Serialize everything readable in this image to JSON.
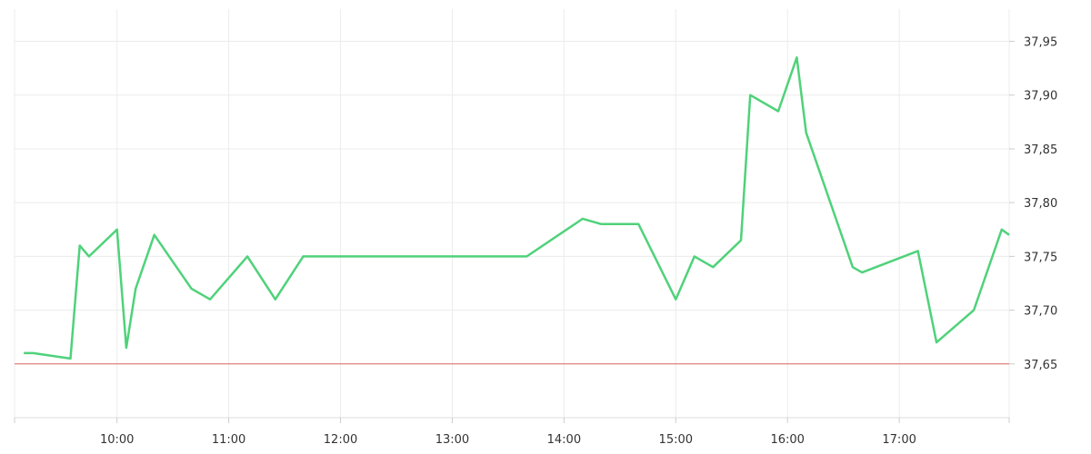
{
  "chart_data": {
    "type": "line",
    "title": "",
    "xlabel": "",
    "ylabel": "",
    "grid": true,
    "legend": "none",
    "colors": {
      "line": "#4fd27a",
      "reference": "#e06666",
      "grid": "#ececec"
    },
    "xlim": [
      "09:05",
      "17:59"
    ],
    "ylim": [
      37.6,
      37.98
    ],
    "x_ticks": [
      "10:00",
      "11:00",
      "12:00",
      "13:00",
      "14:00",
      "15:00",
      "16:00",
      "17:00"
    ],
    "y_ticks": [
      "37,65",
      "37,70",
      "37,75",
      "37,80",
      "37,85",
      "37,90",
      "37,95"
    ],
    "reference_line": 37.65,
    "series": [
      {
        "x": [
          "09:10",
          "09:15",
          "09:35",
          "09:40",
          "09:45",
          "10:00",
          "10:05",
          "10:10",
          "10:20",
          "10:40",
          "10:50",
          "11:10",
          "11:25",
          "11:40",
          "12:00",
          "13:00",
          "13:40",
          "14:10",
          "14:20",
          "14:40",
          "15:00",
          "15:10",
          "15:20",
          "15:35",
          "15:40",
          "15:55",
          "16:05",
          "16:10",
          "16:35",
          "16:40",
          "17:10",
          "17:20",
          "17:40",
          "17:55",
          "17:59"
        ],
        "y": [
          37.66,
          37.66,
          37.655,
          37.76,
          37.75,
          37.775,
          37.665,
          37.72,
          37.77,
          37.72,
          37.71,
          37.75,
          37.71,
          37.75,
          37.75,
          37.75,
          37.75,
          37.785,
          37.78,
          37.78,
          37.71,
          37.75,
          37.74,
          37.765,
          37.9,
          37.885,
          37.935,
          37.865,
          37.74,
          37.735,
          37.755,
          37.67,
          37.7,
          37.775,
          37.77
        ]
      }
    ]
  }
}
